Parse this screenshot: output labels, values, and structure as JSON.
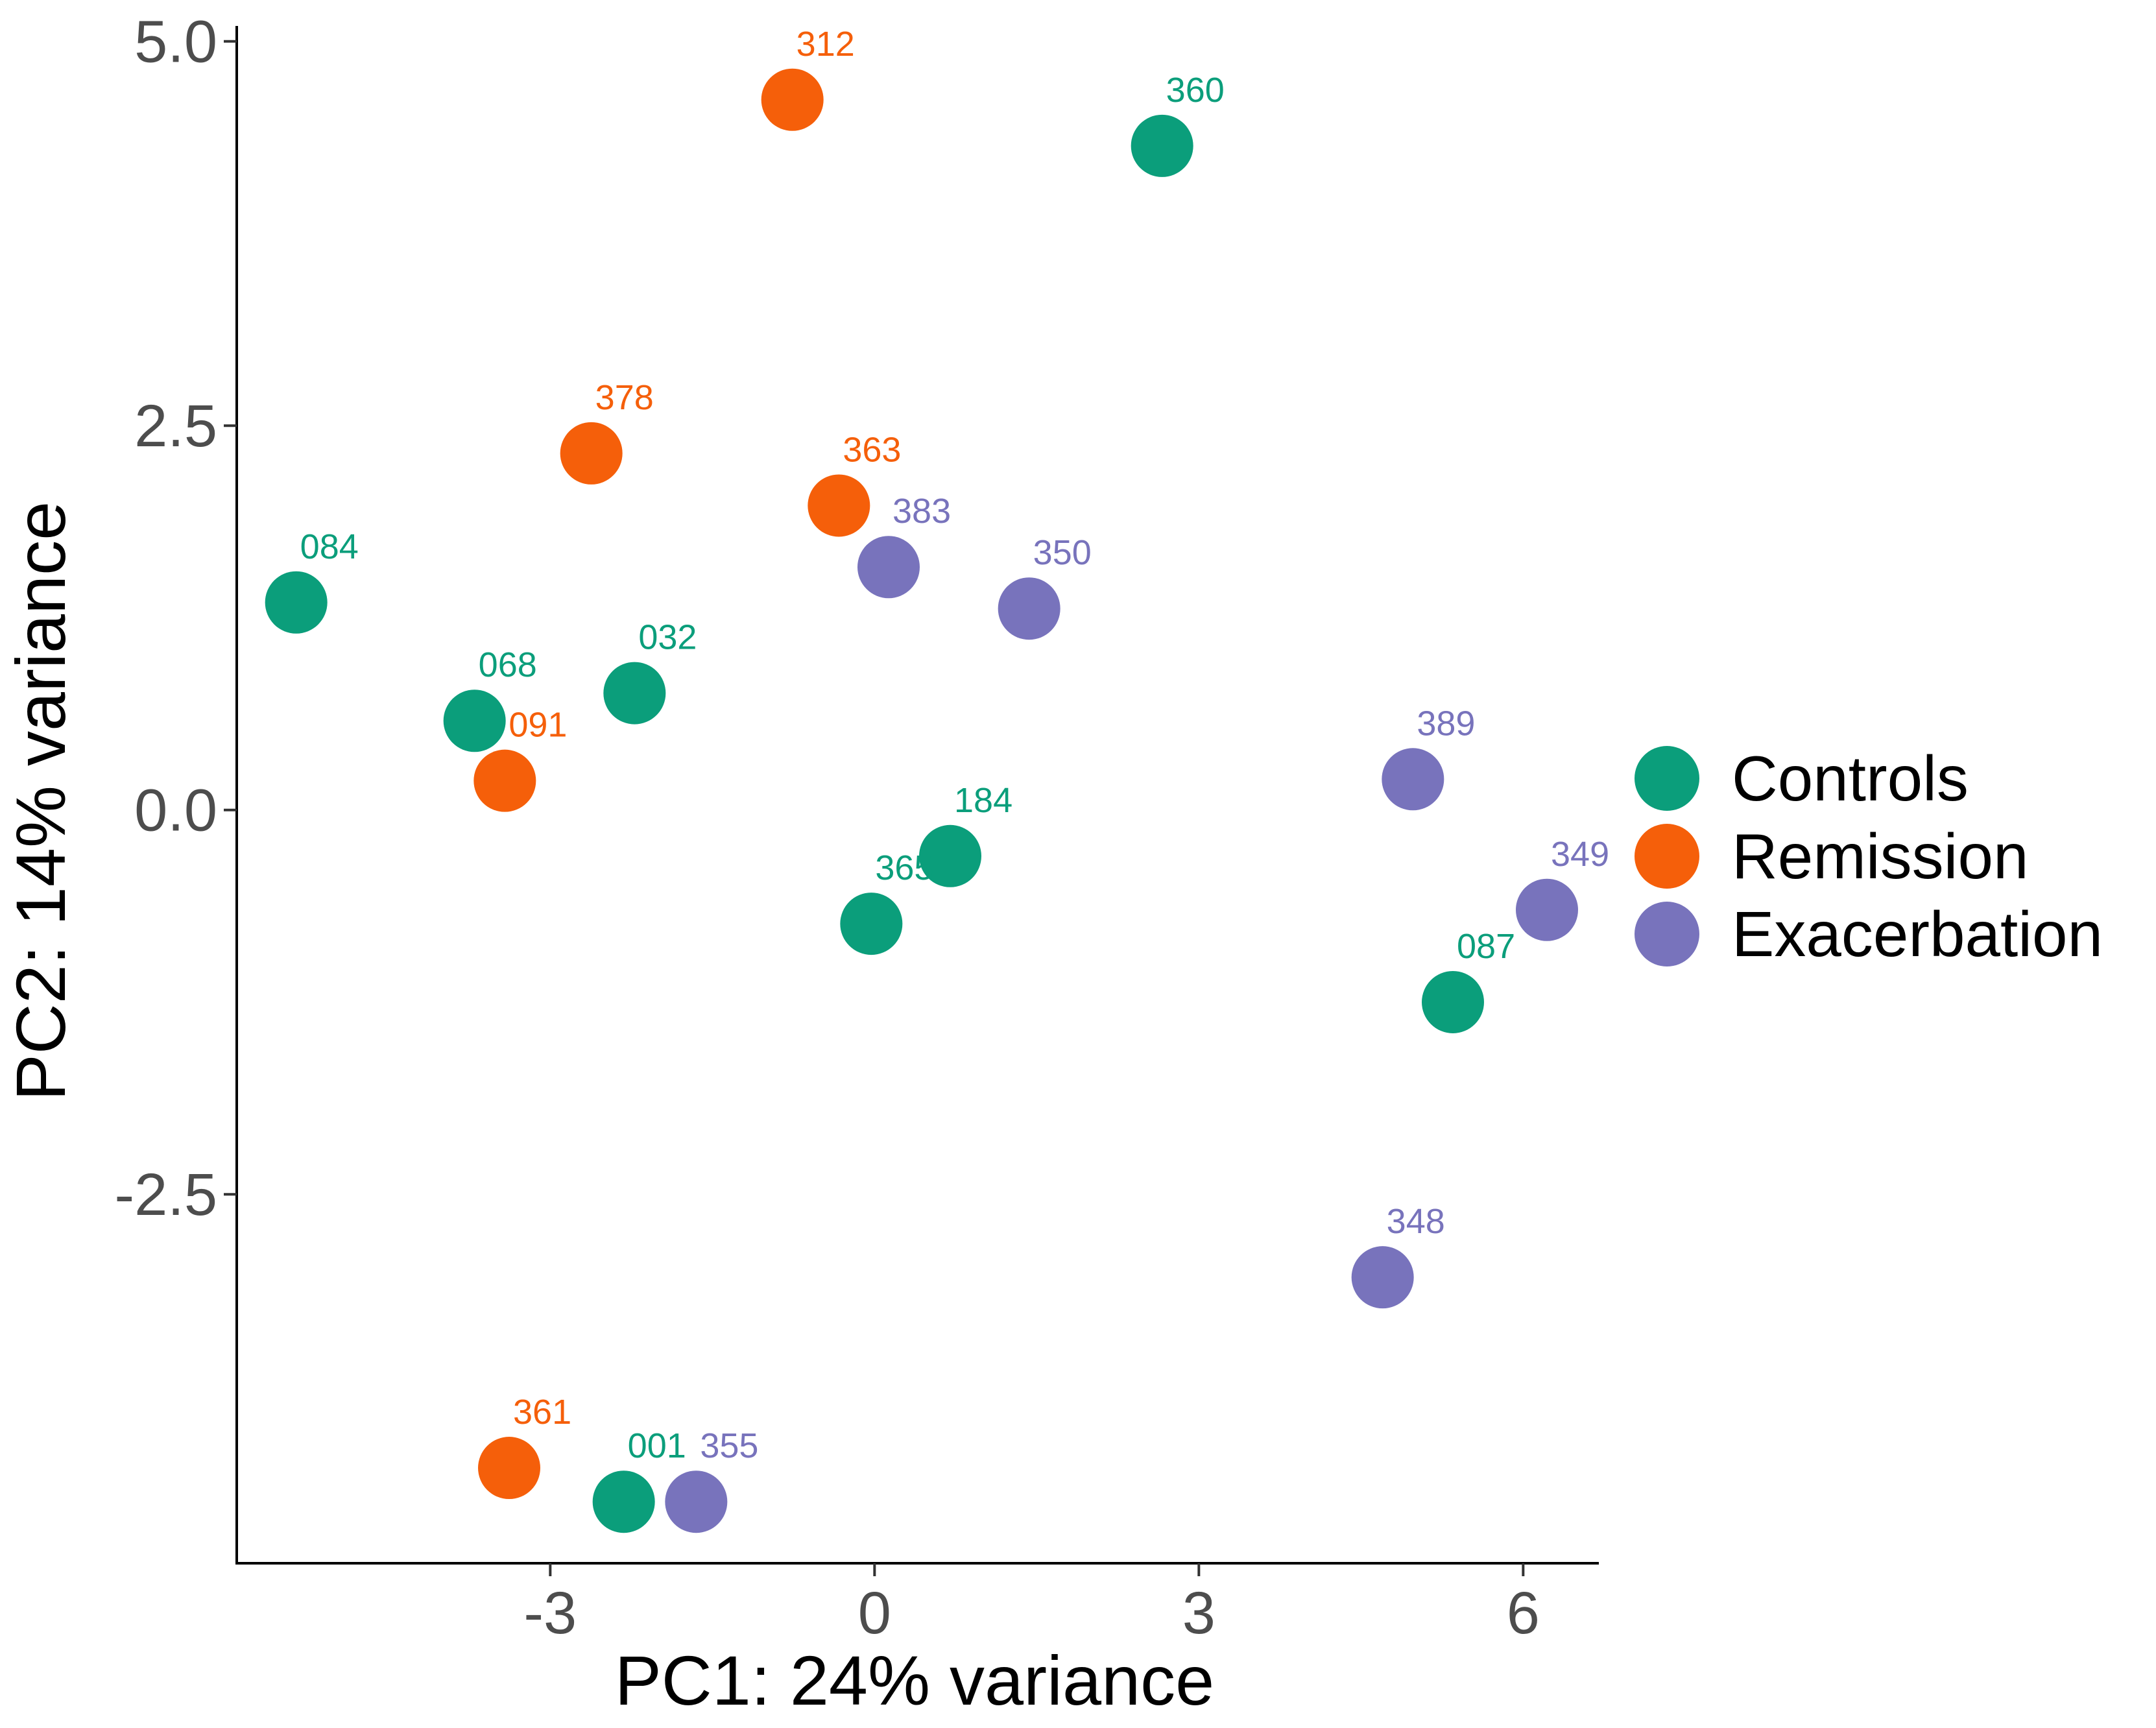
{
  "chart_data": {
    "type": "scatter",
    "title": "",
    "xlabel": "PC1: 24% variance",
    "ylabel": "PC2: 14% variance",
    "xlim": [
      -5.9,
      6.7
    ],
    "ylim": [
      -4.9,
      5.1
    ],
    "xticks": [
      {
        "value": -3,
        "label": "-3"
      },
      {
        "value": 0,
        "label": "0"
      },
      {
        "value": 3,
        "label": "3"
      },
      {
        "value": 6,
        "label": "6"
      }
    ],
    "yticks": [
      {
        "value": 5.0,
        "label": "5.0"
      },
      {
        "value": 2.5,
        "label": "2.5"
      },
      {
        "value": 0.0,
        "label": "0.0"
      },
      {
        "value": -2.5,
        "label": "-2.5"
      }
    ],
    "grid": false,
    "legend_position": "right",
    "series": [
      {
        "name": "Controls",
        "color": "#0b9e7b",
        "points": [
          {
            "label": "360",
            "x": 2.66,
            "y": 4.32
          },
          {
            "label": "084",
            "x": -5.35,
            "y": 1.35
          },
          {
            "label": "068",
            "x": -3.7,
            "y": 0.58
          },
          {
            "label": "032",
            "x": -2.22,
            "y": 0.76
          },
          {
            "label": "184",
            "x": 0.7,
            "y": -0.3
          },
          {
            "label": "365",
            "x": -0.03,
            "y": -0.74
          },
          {
            "label": "087",
            "x": 5.35,
            "y": -1.25
          },
          {
            "label": "001",
            "x": -2.32,
            "y": -4.5
          }
        ]
      },
      {
        "name": "Remission",
        "color": "#f55f0a",
        "points": [
          {
            "label": "312",
            "x": -0.76,
            "y": 4.62
          },
          {
            "label": "378",
            "x": -2.62,
            "y": 2.32
          },
          {
            "label": "363",
            "x": -0.33,
            "y": 1.98
          },
          {
            "label": "091",
            "x": -3.42,
            "y": 0.19
          },
          {
            "label": "361",
            "x": -3.38,
            "y": -4.28
          }
        ]
      },
      {
        "name": "Exacerbation",
        "color": "#7873bc",
        "points": [
          {
            "label": "383",
            "x": 0.13,
            "y": 1.58
          },
          {
            "label": "350",
            "x": 1.43,
            "y": 1.31
          },
          {
            "label": "389",
            "x": 4.98,
            "y": 0.2
          },
          {
            "label": "349",
            "x": 6.22,
            "y": -0.65
          },
          {
            "label": "348",
            "x": 4.7,
            "y": -3.04
          },
          {
            "label": "355",
            "x": -1.65,
            "y": -4.5
          }
        ]
      }
    ]
  }
}
